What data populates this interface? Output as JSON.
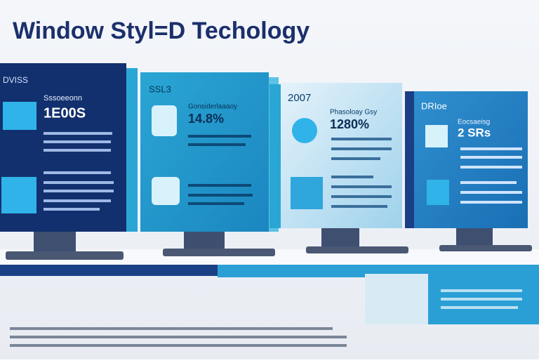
{
  "header": {
    "title": "Window Styl=D Techology"
  },
  "monitors": [
    {
      "label": "DVISS",
      "heading": "Sssoeeonn",
      "value": "1E00S"
    },
    {
      "label": "SSL3",
      "heading": "Gonsiderlaaaoy",
      "value": "14.8%"
    },
    {
      "label": "2007",
      "heading": "Phasoloay Gsy",
      "value": "1280%"
    },
    {
      "label": "DRIoe",
      "heading": "Eocsaeisg",
      "value": "2 SRs"
    }
  ]
}
